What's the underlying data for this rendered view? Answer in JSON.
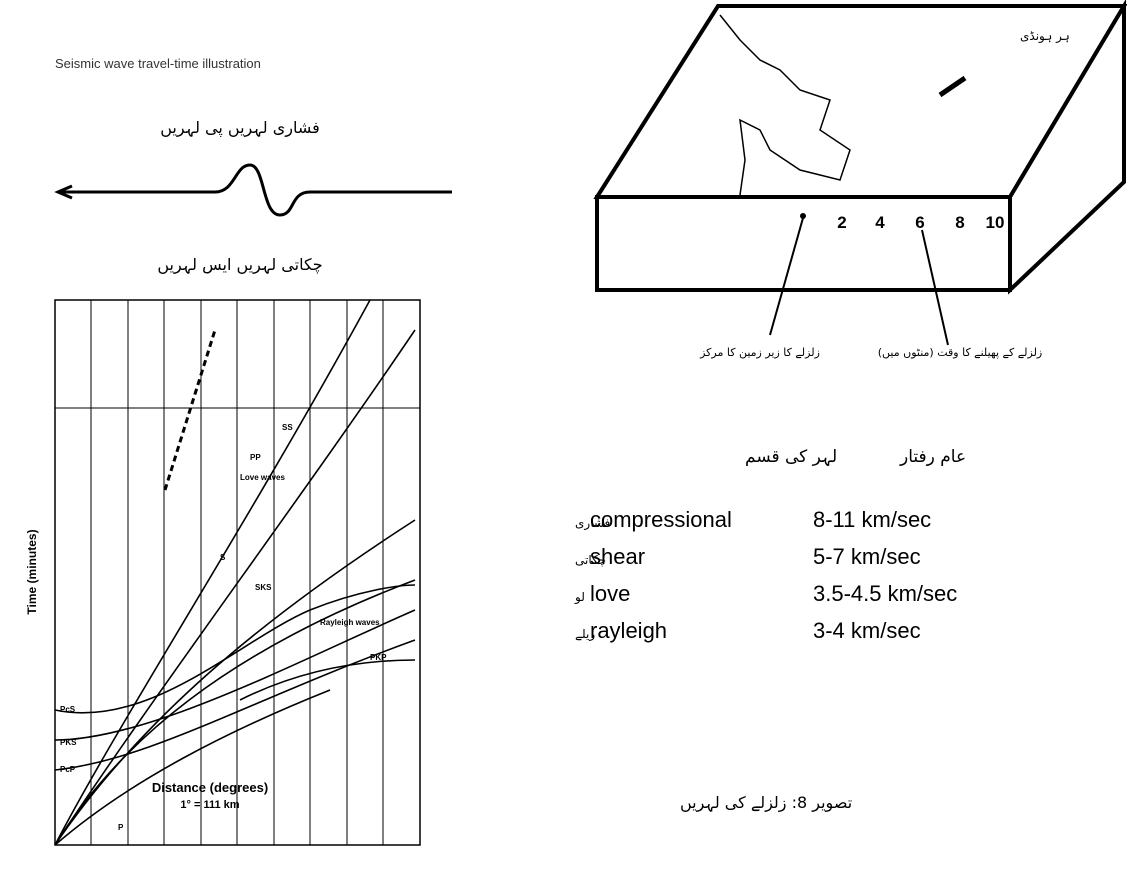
{
  "header": {
    "scan_line": "Seismic wave travel-time illustration"
  },
  "wave_figure": {
    "p_wave_title": "فشاری لہریں پی لہریں",
    "s_wave_title": "چکاتی لہریں ایس لہریں"
  },
  "graph": {
    "y_label": "Time (minutes)",
    "x_label": "Distance (degrees)",
    "x_note": "1° = 111 km",
    "curve_labels": [
      "PcS",
      "PKS",
      "PcP",
      "PKP",
      "P",
      "S",
      "SKS",
      "PP",
      "SS",
      "Love waves",
      "Rayleigh waves"
    ]
  },
  "block": {
    "scale_numbers": [
      "2",
      "4",
      "6",
      "8",
      "10"
    ],
    "map_label": "ہر ہونڈی",
    "epicenter_label": "زلزلے کا زیر زمین کا مرکز",
    "time_label": "زلزلے کے پھیلنے کا وقت (منٹوں میں)"
  },
  "table": {
    "headers": [
      "لہر کی قسم",
      "عام رفتار"
    ],
    "rows": [
      [
        "فشاری",
        "compressional",
        "8-11 km/sec"
      ],
      [
        "چکاتی",
        "shear",
        "5-7 km/sec"
      ],
      [
        "لو",
        "love",
        "3.5-4.5 km/sec"
      ],
      [
        "ریلے",
        "rayleigh",
        "3-4 km/sec"
      ]
    ]
  },
  "caption": "تصویر 8: زلزلے کی لہریں"
}
